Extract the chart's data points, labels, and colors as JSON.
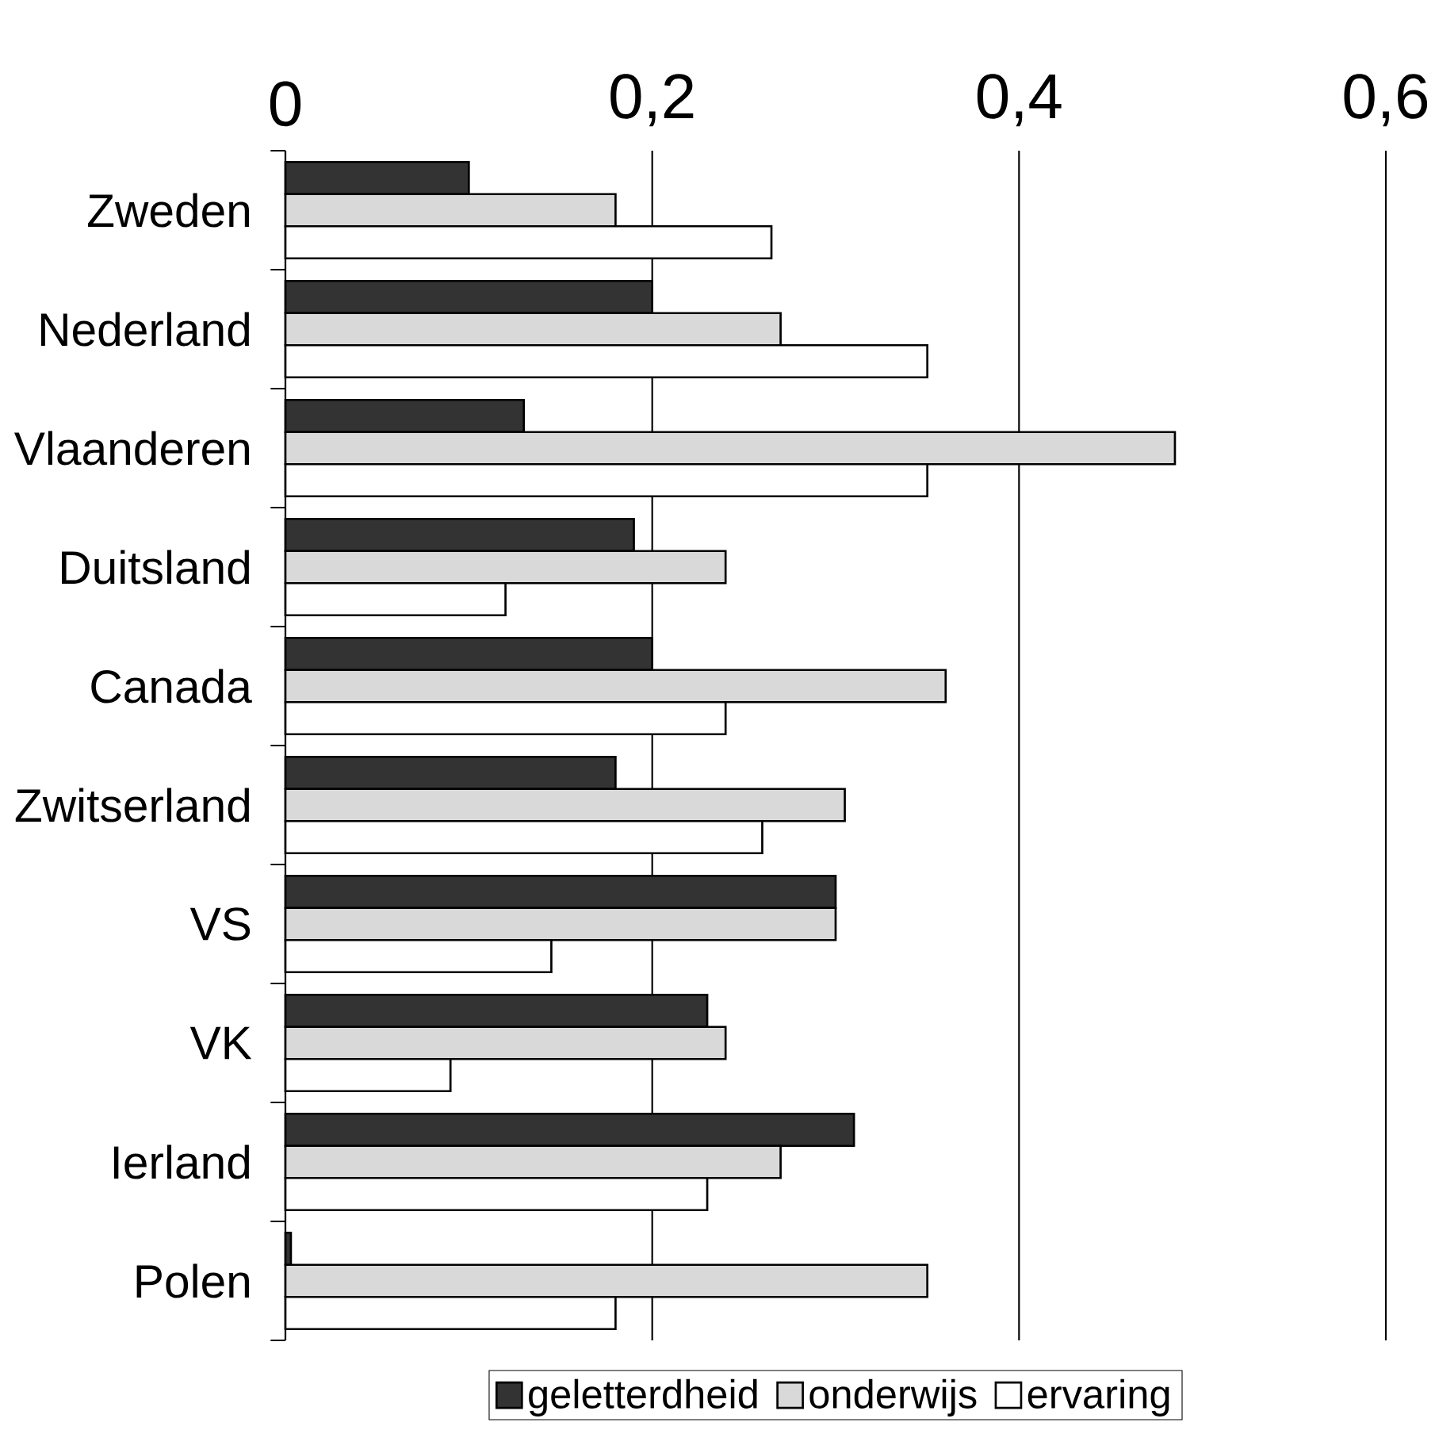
{
  "chart_data": {
    "type": "bar",
    "orientation": "horizontal",
    "categories": [
      "Zweden",
      "Nederland",
      "Vlaanderen",
      "Duitsland",
      "Canada",
      "Zwitserland",
      "VS",
      "VK",
      "Ierland",
      "Polen"
    ],
    "series": [
      {
        "name": "geletterdheid",
        "color": "#333333",
        "values": [
          0.1,
          0.2,
          0.13,
          0.19,
          0.2,
          0.18,
          0.3,
          0.23,
          0.31,
          0.003
        ]
      },
      {
        "name": "onderwijs",
        "color": "#d9d9d9",
        "values": [
          0.18,
          0.27,
          0.485,
          0.24,
          0.36,
          0.305,
          0.3,
          0.24,
          0.27,
          0.35
        ]
      },
      {
        "name": "ervaring",
        "color": "#ffffff",
        "values": [
          0.265,
          0.35,
          0.35,
          0.12,
          0.24,
          0.26,
          0.145,
          0.09,
          0.23,
          0.18
        ]
      }
    ],
    "xlim": [
      0,
      0.6
    ],
    "xticks": [
      0,
      {
        "value": 0.2,
        "label": "0,2"
      },
      {
        "value": 0.4,
        "label": "0,4"
      },
      {
        "value": 0.6,
        "label": "0,6"
      }
    ],
    "grid": "x",
    "legend": "bottom"
  }
}
